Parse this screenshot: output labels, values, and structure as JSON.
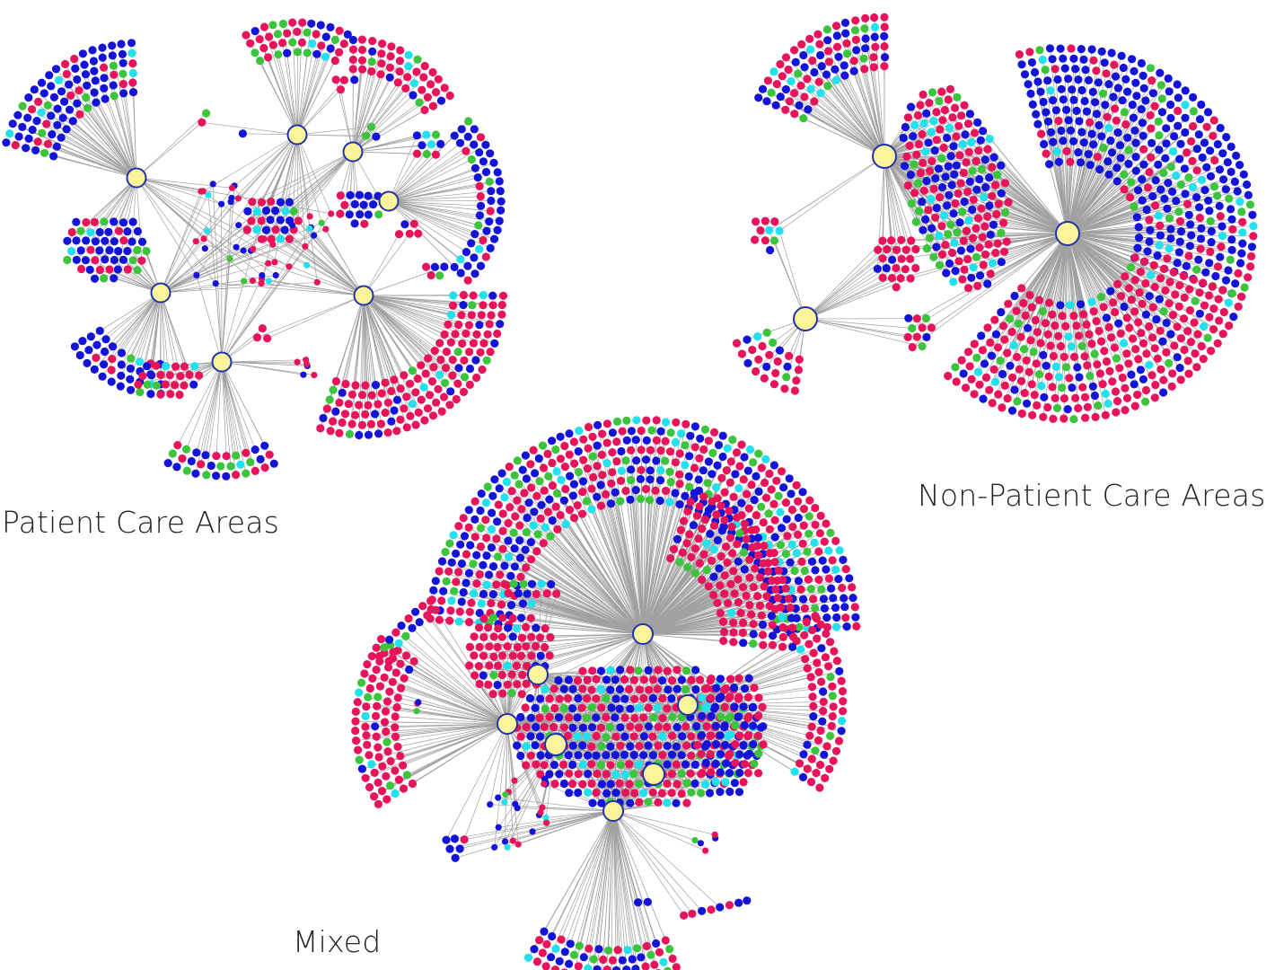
{
  "labels": {
    "patient_care": "Patient Care Areas",
    "non_patient_care": "Non-Patient Care Areas",
    "mixed": "Mixed"
  },
  "colors": {
    "hub_fill": "#fbf49a",
    "hub_stroke": "#2233aa",
    "edge": "#8a8a8a",
    "node_palette": [
      "#e8145a",
      "#1414d8",
      "#3cc43c",
      "#22e0ee"
    ]
  }
}
